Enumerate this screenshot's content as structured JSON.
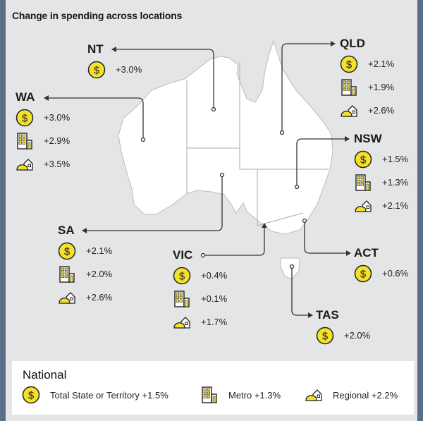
{
  "title": "Change in spending across locations",
  "colors": {
    "accent": "#f5e12a",
    "background": "#e4e5e7",
    "land": "#ffffff",
    "line": "#333333"
  },
  "icons": {
    "total": "dollar-coin-icon",
    "metro": "building-icon",
    "regional": "house-hill-icon"
  },
  "states": {
    "NT": {
      "name": "NT",
      "total": "+3.0%"
    },
    "WA": {
      "name": "WA",
      "total": "+3.0%",
      "metro": "+2.9%",
      "regional": "+3.5%"
    },
    "QLD": {
      "name": "QLD",
      "total": "+2.1%",
      "metro": "+1.9%",
      "regional": "+2.6%"
    },
    "NSW": {
      "name": "NSW",
      "total": "+1.5%",
      "metro": "+1.3%",
      "regional": "+2.1%"
    },
    "SA": {
      "name": "SA",
      "total": "+2.1%",
      "metro": "+2.0%",
      "regional": "+2.6%"
    },
    "VIC": {
      "name": "VIC",
      "total": "+0.4%",
      "metro": "+0.1%",
      "regional": "+1.7%"
    },
    "ACT": {
      "name": "ACT",
      "total": "+0.6%"
    },
    "TAS": {
      "name": "TAS",
      "total": "+2.0%"
    }
  },
  "national": {
    "heading": "National",
    "total": "Total State or Territory +1.5%",
    "metro": "Metro +1.3%",
    "regional": "Regional +2.2%"
  }
}
